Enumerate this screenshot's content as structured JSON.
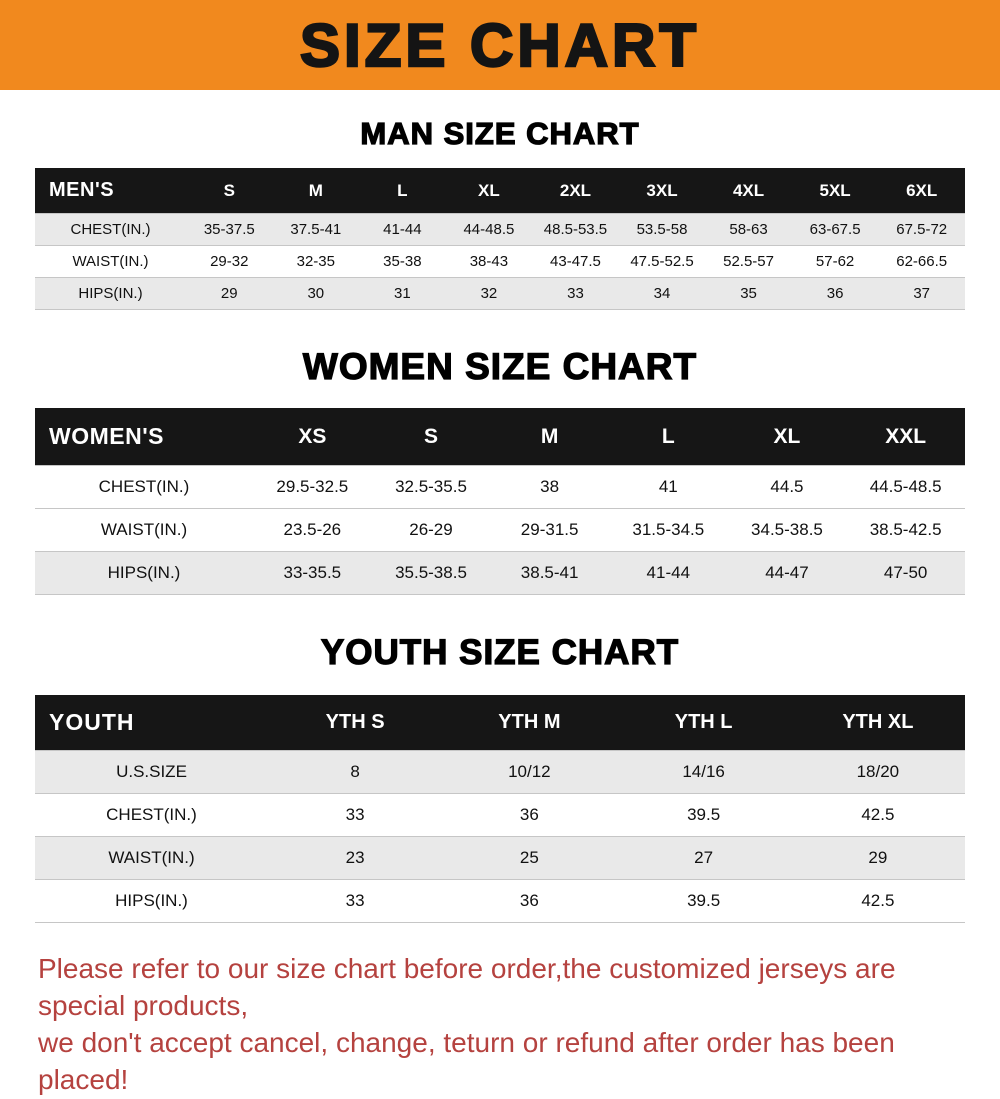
{
  "banner": {
    "title": "SIZE CHART"
  },
  "sections": [
    {
      "heading": "MAN SIZE CHART",
      "table": {
        "label": "MEN'S",
        "columns": [
          "S",
          "M",
          "L",
          "XL",
          "2XL",
          "3XL",
          "4XL",
          "5XL",
          "6XL"
        ],
        "rows": [
          {
            "label": "CHEST(IN.)",
            "values": [
              "35-37.5",
              "37.5-41",
              "41-44",
              "44-48.5",
              "48.5-53.5",
              "53.5-58",
              "58-63",
              "63-67.5",
              "67.5-72"
            ]
          },
          {
            "label": "WAIST(IN.)",
            "values": [
              "29-32",
              "32-35",
              "35-38",
              "38-43",
              "43-47.5",
              "47.5-52.5",
              "52.5-57",
              "57-62",
              "62-66.5"
            ]
          },
          {
            "label": "HIPS(IN.)",
            "values": [
              "29",
              "30",
              "31",
              "32",
              "33",
              "34",
              "35",
              "36",
              "37"
            ]
          }
        ]
      }
    },
    {
      "heading": "WOMEN SIZE CHART",
      "table": {
        "label": "WOMEN'S",
        "columns": [
          "XS",
          "S",
          "M",
          "L",
          "XL",
          "XXL"
        ],
        "rows": [
          {
            "label": "CHEST(IN.)",
            "values": [
              "29.5-32.5",
              "32.5-35.5",
              "38",
              "41",
              "44.5",
              "44.5-48.5"
            ]
          },
          {
            "label": "WAIST(IN.)",
            "values": [
              "23.5-26",
              "26-29",
              "29-31.5",
              "31.5-34.5",
              "34.5-38.5",
              "38.5-42.5"
            ]
          },
          {
            "label": "HIPS(IN.)",
            "values": [
              "33-35.5",
              "35.5-38.5",
              "38.5-41",
              "41-44",
              "44-47",
              "47-50"
            ]
          }
        ]
      }
    },
    {
      "heading": "YOUTH SIZE CHART",
      "table": {
        "label": "YOUTH",
        "columns": [
          "YTH S",
          "YTH M",
          "YTH L",
          "YTH XL"
        ],
        "rows": [
          {
            "label": "U.S.SIZE",
            "values": [
              "8",
              "10/12",
              "14/16",
              "18/20"
            ]
          },
          {
            "label": "CHEST(IN.)",
            "values": [
              "33",
              "36",
              "39.5",
              "42.5"
            ]
          },
          {
            "label": "WAIST(IN.)",
            "values": [
              "23",
              "25",
              "27",
              "29"
            ]
          },
          {
            "label": "HIPS(IN.)",
            "values": [
              "33",
              "36",
              "39.5",
              "42.5"
            ]
          }
        ]
      }
    }
  ],
  "footer": {
    "lines": [
      "Please refer to our size chart before order,the customized jerseys are special products,",
      "we don't accept cancel, change, teturn or refund after order has been placed!"
    ]
  },
  "colors": {
    "banner-bg": "#F1891E",
    "header-bg": "#161616",
    "row-alt": "#E9E9E9",
    "notice-red": "#B5423F"
  }
}
